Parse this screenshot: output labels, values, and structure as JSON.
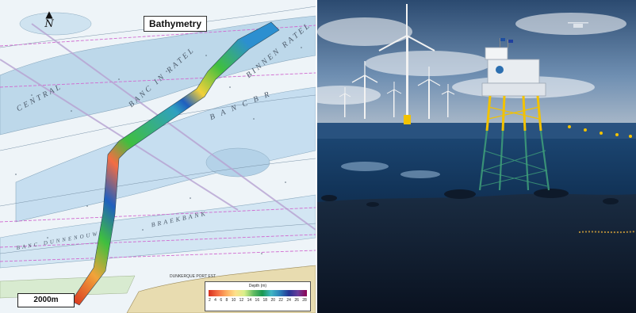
{
  "map": {
    "title": "Bathymetry",
    "north_label": "N",
    "north_arrow": "▲",
    "scale_label": "2000m",
    "legend": {
      "title": "Depth (m)",
      "ticks": [
        "2",
        "4",
        "6",
        "8",
        "10",
        "12",
        "14",
        "16",
        "18",
        "20",
        "22",
        "24",
        "26",
        "28"
      ]
    },
    "chart_labels": {
      "central": "CENTRAL",
      "banc_in_ratel": "BANC IN RATEL",
      "binnen_ratel": "BINNEN RATEL",
      "banc_br": "B A N C   B R",
      "braekbank": "BRAEKBANK",
      "banc_dunnenouw": "BANC DUNNENOUW",
      "dunkerque": "DUNKERQUE PORT EST"
    }
  },
  "scene": {
    "platform_flags": [
      "France",
      "EU"
    ]
  },
  "colors": {
    "sea_light": "#cfe3f0",
    "sea_mid": "#a9cde3",
    "sand": "#e8dcb0",
    "survey_green": "#3fbf3f",
    "survey_blue": "#1f5fbf",
    "platform_yellow": "#f2c200",
    "sky": "#3b5f86",
    "water_deep": "#0b1a2e"
  }
}
